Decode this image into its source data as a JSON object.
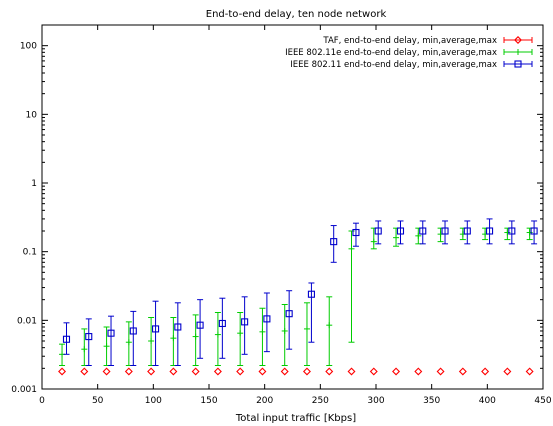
{
  "chart_data": {
    "type": "scatter",
    "title": "End-to-end delay, ten node network",
    "xlabel": "Total input traffic [Kbps]",
    "ylabel": "",
    "xlim": [
      0,
      450
    ],
    "ylim": [
      0.001,
      200
    ],
    "yscale": "log",
    "grid": false,
    "legend_position": "top-right",
    "xticks": [
      0,
      50,
      100,
      150,
      200,
      250,
      300,
      350,
      400,
      450
    ],
    "yticks": [
      0.001,
      0.01,
      0.1,
      1,
      10,
      100
    ],
    "ytick_labels": [
      "0.001",
      "0.01",
      "0.1",
      "1",
      "10",
      "100"
    ],
    "series": [
      {
        "name": "TAF, end-to-end delay, min,average,max",
        "color": "#ff0000",
        "marker": "diamond",
        "x": [
          18,
          38,
          58,
          78,
          98,
          118,
          138,
          158,
          178,
          198,
          218,
          238,
          258,
          278,
          298,
          318,
          338,
          358,
          378,
          398,
          418,
          438
        ],
        "y": [
          0.0018,
          0.0018,
          0.0018,
          0.0018,
          0.0018,
          0.0018,
          0.0018,
          0.0018,
          0.0018,
          0.0018,
          0.0018,
          0.0018,
          0.0018,
          0.0018,
          0.0018,
          0.0018,
          0.0018,
          0.0018,
          0.0018,
          0.0018,
          0.0018,
          0.0018
        ],
        "min": [
          0.0018,
          0.0018,
          0.0018,
          0.0018,
          0.0018,
          0.0018,
          0.0018,
          0.0018,
          0.0018,
          0.0018,
          0.0018,
          0.0018,
          0.0018,
          0.0018,
          0.0018,
          0.0018,
          0.0018,
          0.0018,
          0.0018,
          0.0018,
          0.0018,
          0.0018
        ],
        "max": [
          0.0018,
          0.0018,
          0.0018,
          0.0018,
          0.0018,
          0.0018,
          0.0018,
          0.0018,
          0.0018,
          0.0018,
          0.0018,
          0.0018,
          0.0018,
          0.0018,
          0.0018,
          0.0018,
          0.0018,
          0.0018,
          0.0018,
          0.0018,
          0.0018,
          0.0018
        ]
      },
      {
        "name": "IEEE 802.11e end-to-end delay, min,average,max",
        "color": "#00cc00",
        "marker": "plus",
        "x": [
          18,
          38,
          58,
          78,
          98,
          118,
          138,
          158,
          178,
          198,
          218,
          238,
          258,
          278,
          298,
          318,
          338,
          358,
          378,
          398,
          418,
          438
        ],
        "y": [
          0.0032,
          0.0038,
          0.0042,
          0.0048,
          0.005,
          0.0055,
          0.0058,
          0.0062,
          0.0065,
          0.0068,
          0.007,
          0.0075,
          0.0085,
          0.11,
          0.14,
          0.16,
          0.17,
          0.18,
          0.18,
          0.18,
          0.19,
          0.19
        ],
        "min": [
          0.0022,
          0.0022,
          0.0022,
          0.0022,
          0.0022,
          0.0022,
          0.0022,
          0.0022,
          0.0022,
          0.0022,
          0.0022,
          0.0022,
          0.0022,
          0.0048,
          0.11,
          0.12,
          0.13,
          0.14,
          0.15,
          0.15,
          0.15,
          0.15
        ],
        "max": [
          0.0045,
          0.0075,
          0.008,
          0.0095,
          0.011,
          0.011,
          0.012,
          0.013,
          0.013,
          0.015,
          0.017,
          0.018,
          0.022,
          0.2,
          0.22,
          0.22,
          0.22,
          0.22,
          0.22,
          0.22,
          0.22,
          0.22
        ]
      },
      {
        "name": "IEEE 802.11 end-to-end delay, min,average,max",
        "color": "#0000cc",
        "marker": "square",
        "x": [
          22,
          42,
          62,
          82,
          102,
          122,
          142,
          162,
          182,
          202,
          222,
          242,
          262,
          282,
          302,
          322,
          342,
          362,
          382,
          402,
          422,
          442
        ],
        "y": [
          0.0053,
          0.0058,
          0.0065,
          0.007,
          0.0075,
          0.008,
          0.0085,
          0.009,
          0.0095,
          0.0105,
          0.0125,
          0.024,
          0.14,
          0.19,
          0.2,
          0.2,
          0.2,
          0.2,
          0.2,
          0.2,
          0.2,
          0.2
        ],
        "min": [
          0.0032,
          0.0022,
          0.0022,
          0.0022,
          0.0022,
          0.0022,
          0.0028,
          0.0028,
          0.0032,
          0.0035,
          0.0038,
          0.0048,
          0.07,
          0.12,
          0.13,
          0.13,
          0.13,
          0.13,
          0.13,
          0.13,
          0.13,
          0.13
        ],
        "max": [
          0.0092,
          0.0105,
          0.0115,
          0.0135,
          0.019,
          0.018,
          0.02,
          0.021,
          0.022,
          0.025,
          0.027,
          0.035,
          0.24,
          0.26,
          0.28,
          0.28,
          0.28,
          0.28,
          0.28,
          0.3,
          0.28,
          0.28
        ]
      }
    ]
  }
}
